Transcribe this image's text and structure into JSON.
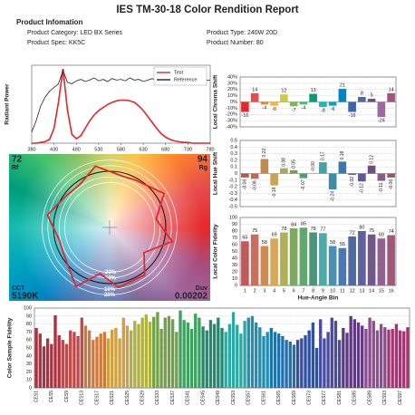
{
  "header": {
    "title": "IES TM-30-18 Color Rendition Report",
    "section": "Product Infomation",
    "fields": [
      "Product Category: LED BX Series",
      "Product Type: 240W 20D",
      "Product Spec: KK5C",
      "Product Number: 80"
    ]
  },
  "chart_data": [
    {
      "type": "line",
      "y_label": "Radiant Power",
      "x": [
        380,
        390,
        400,
        410,
        420,
        430,
        440,
        450,
        460,
        470,
        480,
        490,
        500,
        510,
        520,
        530,
        540,
        550,
        560,
        570,
        580,
        590,
        600,
        610,
        620,
        630,
        640,
        650,
        660,
        670,
        680,
        690,
        700,
        710,
        720,
        730,
        740,
        750,
        760,
        770,
        780
      ],
      "series": [
        {
          "name": "Test",
          "color": "#e3262b",
          "values": [
            0,
            0,
            0.01,
            0.02,
            0.05,
            0.2,
            0.55,
            1.0,
            0.45,
            0.12,
            0.06,
            0.1,
            0.2,
            0.3,
            0.38,
            0.44,
            0.48,
            0.52,
            0.55,
            0.57,
            0.58,
            0.58,
            0.57,
            0.55,
            0.5,
            0.44,
            0.36,
            0.28,
            0.2,
            0.13,
            0.08,
            0.05,
            0.03,
            0.02,
            0.01,
            0.01,
            0,
            0,
            0,
            0,
            0
          ]
        },
        {
          "name": "Reference",
          "color": "#222222",
          "values": [
            0.15,
            0.3,
            0.5,
            0.62,
            0.7,
            0.75,
            0.8,
            0.98,
            0.82,
            0.8,
            0.84,
            0.86,
            0.83,
            0.85,
            0.88,
            0.84,
            0.86,
            0.83,
            0.87,
            0.85,
            0.86,
            0.84,
            0.88,
            0.85,
            0.86,
            0.83,
            0.85,
            0.87,
            0.84,
            0.86,
            0.85,
            0.83,
            0.86,
            0.85,
            0.84,
            0.86,
            0.85,
            0.84,
            0.86,
            0.85,
            0.85
          ]
        }
      ],
      "xlim": [
        380,
        780
      ],
      "xticks": [
        380,
        430,
        480,
        530,
        580,
        630,
        680,
        730,
        780
      ],
      "ylim": [
        0,
        1.05
      ],
      "legend": "top-right"
    },
    {
      "type": "bar",
      "y_label": "Local Chroma Shift",
      "data_labels": true,
      "grid": true,
      "values": [
        -16,
        14,
        -4,
        -6,
        12,
        -7,
        -4,
        13,
        -8,
        -6,
        21,
        -16,
        8,
        5,
        -24,
        14
      ],
      "colors": [
        "#e62828",
        "#e74b4b",
        "#fb812e",
        "#ffb529",
        "#cbca46",
        "#7eb94c",
        "#41c06d",
        "#009c7c",
        "#16bcb0",
        "#00a4bf",
        "#0085c3",
        "#3b62aa",
        "#4568ae",
        "#6a4e85",
        "#9d69a1",
        "#a74f81"
      ],
      "ylim": [
        -40,
        40
      ],
      "yticks": [
        {
          "value": 40,
          "label": "40%"
        },
        {
          "value": 30,
          "label": "30%"
        },
        {
          "value": 20,
          "label": "20%"
        },
        {
          "value": 10,
          "label": "10%"
        },
        {
          "value": 0,
          "label": "0%"
        },
        {
          "value": -10,
          "label": "-10%"
        },
        {
          "value": -20,
          "label": "-20%"
        },
        {
          "value": -30,
          "label": "-30%"
        },
        {
          "value": -40,
          "label": "-40%"
        }
      ]
    },
    {
      "type": "bar",
      "y_label": "Local Hue Shift",
      "data_labels": true,
      "grid": true,
      "values": [
        -0.06,
        -0.08,
        0.22,
        -0.18,
        0.08,
        0.05,
        -0.07,
        -0.0,
        0.17,
        -0.24,
        0.18,
        -0.02,
        -0.12,
        0.12,
        -0.11,
        -0.06
      ],
      "value_labels": [
        "-0.06",
        "-0.08",
        "0.22",
        "-0.18",
        "0.08",
        "0.05",
        "-0.07",
        "-0.00",
        "0.17",
        "-0.24",
        "0.18",
        "-0.02",
        "-0.12",
        "0.12",
        "-0.11",
        "-0.06"
      ],
      "colors": [
        "#b85555",
        "#b86a5a",
        "#c08a50",
        "#c8a455",
        "#a8a860",
        "#7a9a58",
        "#5a9a70",
        "#3f8a78",
        "#4aa0a0",
        "#3f8ca8",
        "#3f78a8",
        "#4a609a",
        "#5a5a9a",
        "#6a5080",
        "#8a5a8a",
        "#9a5070"
      ],
      "ylim": [
        -0.5,
        0.5
      ],
      "yticks": [
        0.5,
        0.4,
        0.3,
        0.2,
        0.1,
        0,
        -0.1,
        -0.2,
        -0.3,
        -0.4,
        -0.5
      ]
    },
    {
      "type": "bar",
      "y_label": "Local Color Fidelity",
      "x_label": "Hue-Angle Bin",
      "data_labels": true,
      "grid": true,
      "categories": [
        "1",
        "2",
        "3",
        "4",
        "5",
        "6",
        "7",
        "8",
        "9",
        "10",
        "11",
        "12",
        "13",
        "14",
        "15",
        "16"
      ],
      "values": [
        65,
        75,
        58,
        69,
        78,
        84,
        85,
        78,
        77,
        58,
        55,
        72,
        80,
        75,
        69,
        74
      ],
      "colors": [
        "#c05a5a",
        "#c87060",
        "#d08a50",
        "#d8a858",
        "#b0b058",
        "#80a860",
        "#60a870",
        "#4a9478",
        "#50a8a8",
        "#4a90b0",
        "#4a78b0",
        "#5068a0",
        "#6060a0",
        "#705888",
        "#906090",
        "#a05878"
      ],
      "ylim": [
        0,
        100
      ],
      "yticks": [
        0,
        10,
        20,
        30,
        40,
        50,
        60,
        70,
        80,
        90,
        100
      ]
    },
    {
      "type": "vector",
      "rf": 72,
      "rf_label": "Rf",
      "rg": 94,
      "rg_label": "Rg",
      "cct_label": "CCT",
      "cct": "5190K",
      "duv_label": "Duv",
      "duv": 0.00202,
      "ring_labels": [
        "-20%",
        "-10%",
        "10%",
        "20%"
      ]
    },
    {
      "type": "bar",
      "y_label": "Color Sample Fidelity",
      "grid": true,
      "categories": [
        "CES1",
        null,
        null,
        null,
        "CES5",
        null,
        null,
        null,
        "CES9",
        null,
        null,
        null,
        "CES13",
        null,
        null,
        null,
        "CES17",
        null,
        null,
        null,
        "CES21",
        null,
        null,
        null,
        "CES25",
        null,
        null,
        null,
        "CES29",
        null,
        null,
        null,
        "CES33",
        null,
        null,
        null,
        "CES37",
        null,
        null,
        null,
        "CES41",
        null,
        null,
        null,
        "CES45",
        null,
        null,
        null,
        "CES49",
        null,
        null,
        null,
        "CES53",
        null,
        null,
        null,
        "CES57",
        null,
        null,
        null,
        "CES61",
        null,
        null,
        null,
        "CES65",
        null,
        null,
        null,
        "CES69",
        null,
        null,
        null,
        "CES73",
        null,
        null,
        null,
        "CES77",
        null,
        null,
        null,
        "CES81",
        null,
        null,
        null,
        "CES85",
        null,
        null,
        null,
        "CES89",
        null,
        null,
        null,
        "CES93",
        null,
        null,
        null,
        "CES97",
        null,
        null
      ],
      "values": [
        75,
        68,
        52,
        62,
        55,
        91,
        66,
        60,
        55,
        72,
        70,
        65,
        88,
        78,
        72,
        60,
        64,
        68,
        70,
        62,
        73,
        75,
        62,
        88,
        78,
        72,
        84,
        80,
        88,
        92,
        83,
        89,
        95,
        74,
        88,
        90,
        86,
        70,
        97,
        85,
        82,
        74,
        93,
        88,
        77,
        72,
        85,
        80,
        88,
        75,
        70,
        80,
        95,
        79,
        68,
        84,
        88,
        90,
        82,
        76,
        65,
        70,
        75,
        70,
        68,
        65,
        60,
        58,
        54,
        60,
        62,
        66,
        72,
        82,
        50,
        86,
        62,
        70,
        88,
        84,
        60,
        75,
        69,
        90,
        86,
        82,
        78,
        74,
        88,
        84,
        72,
        80,
        76,
        73,
        74,
        80,
        72,
        71,
        76
      ],
      "colors": [
        "#b03040",
        "#c04848",
        "#d07838",
        "#d0a040",
        "#b0b040",
        "#70a048",
        "#40a060",
        "#208a70",
        "#30a8a0",
        "#2090b0",
        "#2070b0",
        "#3050a0",
        "#4a4aa0",
        "#603a80",
        "#904a90",
        "#a03870"
      ],
      "ylim": [
        0,
        100
      ],
      "yticks": [
        0,
        10,
        20,
        30,
        40,
        50,
        60,
        70,
        80,
        90,
        100
      ]
    }
  ]
}
